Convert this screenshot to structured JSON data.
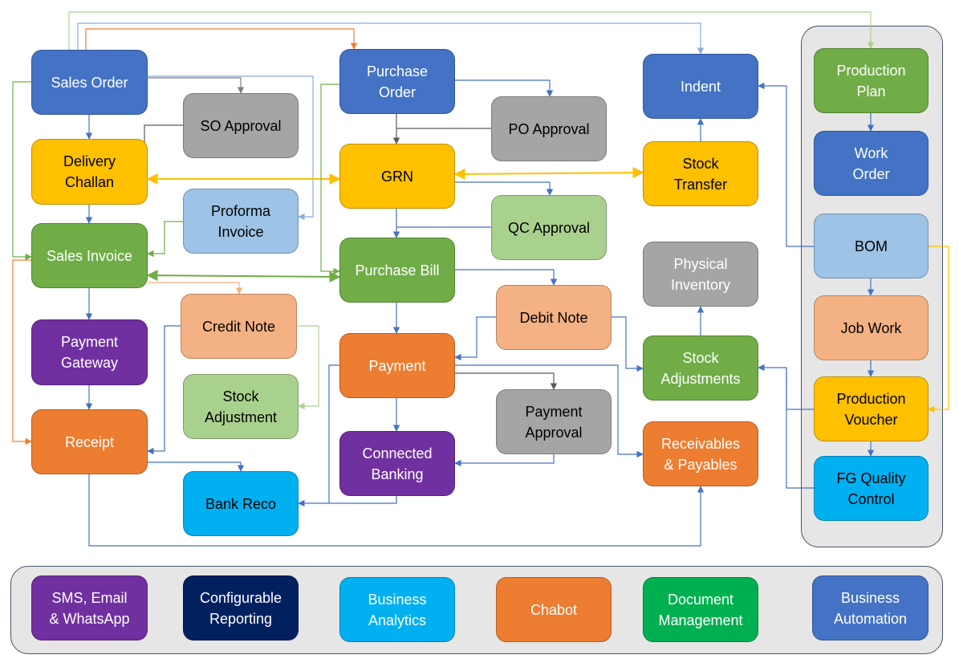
{
  "colors": {
    "blue": "#4472C4",
    "gray": "#A5A5A5",
    "yellow": "#FFC000",
    "lightblue": "#9DC3E6",
    "green": "#70AD47",
    "salmon": "#F4B183",
    "purple": "#7030A0",
    "lightgreen": "#A9D18E",
    "orange": "#ED7D31",
    "cyan": "#00B0F0",
    "navy": "#002060",
    "brightgreen": "#00B050",
    "panel": "#E7E6E6"
  },
  "nodes": [
    {
      "id": "sales-order",
      "label": "Sales Order",
      "fill": "#4472C4",
      "text": "#FFFFFF"
    },
    {
      "id": "so-approval",
      "label": "SO Approval",
      "fill": "#A5A5A5",
      "text": "#000000"
    },
    {
      "id": "delivery-challan",
      "label": "Delivery\nChallan",
      "fill": "#FFC000",
      "text": "#000000"
    },
    {
      "id": "proforma-invoice",
      "label": "Proforma\nInvoice",
      "fill": "#9DC3E6",
      "text": "#000000"
    },
    {
      "id": "sales-invoice",
      "label": "Sales Invoice",
      "fill": "#70AD47",
      "text": "#FFFFFF"
    },
    {
      "id": "credit-note",
      "label": "Credit Note",
      "fill": "#F4B183",
      "text": "#000000"
    },
    {
      "id": "payment-gateway",
      "label": "Payment\nGateway",
      "fill": "#7030A0",
      "text": "#FFFFFF"
    },
    {
      "id": "stock-adjustment",
      "label": "Stock\nAdjustment",
      "fill": "#A9D18E",
      "text": "#000000"
    },
    {
      "id": "receipt",
      "label": "Receipt",
      "fill": "#ED7D31",
      "text": "#FFFFFF"
    },
    {
      "id": "bank-reco",
      "label": "Bank Reco",
      "fill": "#00B0F0",
      "text": "#000000"
    },
    {
      "id": "purchase-order",
      "label": "Purchase\nOrder",
      "fill": "#4472C4",
      "text": "#FFFFFF"
    },
    {
      "id": "po-approval",
      "label": "PO Approval",
      "fill": "#A5A5A5",
      "text": "#000000"
    },
    {
      "id": "grn",
      "label": "GRN",
      "fill": "#FFC000",
      "text": "#000000"
    },
    {
      "id": "qc-approval",
      "label": "QC Approval",
      "fill": "#A9D18E",
      "text": "#000000"
    },
    {
      "id": "purchase-bill",
      "label": "Purchase Bill",
      "fill": "#70AD47",
      "text": "#FFFFFF"
    },
    {
      "id": "debit-note",
      "label": "Debit Note",
      "fill": "#F4B183",
      "text": "#000000"
    },
    {
      "id": "payment",
      "label": "Payment",
      "fill": "#ED7D31",
      "text": "#FFFFFF"
    },
    {
      "id": "payment-approval",
      "label": "Payment\nApproval",
      "fill": "#A5A5A5",
      "text": "#000000"
    },
    {
      "id": "connected-banking",
      "label": "Connected\nBanking",
      "fill": "#7030A0",
      "text": "#FFFFFF"
    },
    {
      "id": "indent",
      "label": "Indent",
      "fill": "#4472C4",
      "text": "#FFFFFF"
    },
    {
      "id": "stock-transfer",
      "label": "Stock\nTransfer",
      "fill": "#FFC000",
      "text": "#000000"
    },
    {
      "id": "physical-inventory",
      "label": "Physical\nInventory",
      "fill": "#A5A5A5",
      "text": "#FFFFFF"
    },
    {
      "id": "stock-adjustments",
      "label": "Stock\nAdjustments",
      "fill": "#70AD47",
      "text": "#FFFFFF"
    },
    {
      "id": "receivables-payables",
      "label": "Receivables\n& Payables",
      "fill": "#ED7D31",
      "text": "#FFFFFF"
    },
    {
      "id": "production-plan",
      "label": "Production\nPlan",
      "fill": "#70AD47",
      "text": "#FFFFFF"
    },
    {
      "id": "work-order",
      "label": "Work\nOrder",
      "fill": "#4472C4",
      "text": "#FFFFFF"
    },
    {
      "id": "bom",
      "label": "BOM",
      "fill": "#9DC3E6",
      "text": "#000000"
    },
    {
      "id": "job-work",
      "label": "Job Work",
      "fill": "#F4B183",
      "text": "#000000"
    },
    {
      "id": "production-voucher",
      "label": "Production\nVoucher",
      "fill": "#FFC000",
      "text": "#000000"
    },
    {
      "id": "fg-quality-control",
      "label": "FG Quality\nControl",
      "fill": "#00B0F0",
      "text": "#000000"
    },
    {
      "id": "sms-email-whatsapp",
      "label": "SMS, Email\n& WhatsApp",
      "fill": "#7030A0",
      "text": "#FFFFFF"
    },
    {
      "id": "configurable-reporting",
      "label": "Configurable\nReporting",
      "fill": "#002060",
      "text": "#FFFFFF"
    },
    {
      "id": "business-analytics",
      "label": "Business\nAnalytics",
      "fill": "#00B0F0",
      "text": "#FFFFFF"
    },
    {
      "id": "chabot",
      "label": "Chabot",
      "fill": "#ED7D31",
      "text": "#FFFFFF"
    },
    {
      "id": "document-management",
      "label": "Document\nManagement",
      "fill": "#00B050",
      "text": "#FFFFFF"
    },
    {
      "id": "business-automation",
      "label": "Business\nAutomation",
      "fill": "#4472C4",
      "text": "#FFFFFF"
    }
  ]
}
